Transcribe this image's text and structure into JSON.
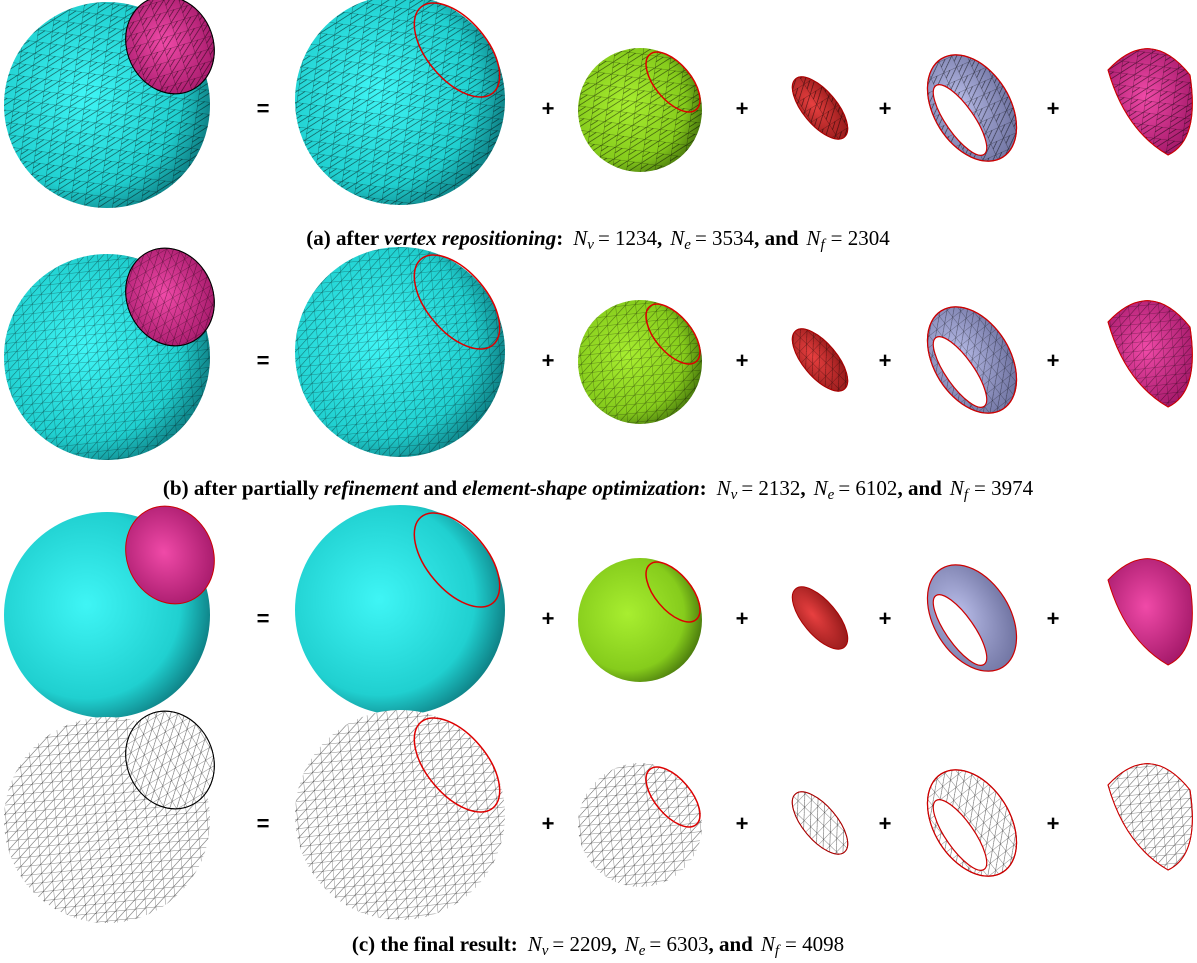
{
  "rows": [
    {
      "operators": [
        "=",
        "+",
        "+",
        "+",
        "+"
      ]
    },
    {
      "operators": [
        "=",
        "+",
        "+",
        "+",
        "+"
      ]
    },
    {
      "operators": [
        "=",
        "+",
        "+",
        "+",
        "+"
      ]
    },
    {
      "operators": [
        "=",
        "+",
        "+",
        "+",
        "+"
      ]
    }
  ],
  "captions": [
    [
      "(a) after",
      "vertex repositioning",
      ":",
      "N",
      "v",
      "= 1234",
      ",",
      "N",
      "e",
      "= 3534",
      ", and",
      "N",
      "f",
      "= 2304"
    ],
    [
      "(b) after partially",
      "refinement",
      "and",
      "element-shape optimization",
      ":",
      "N",
      "v",
      "= 2132",
      ",",
      "N",
      "e",
      "= 6102",
      ", and",
      "N",
      "f",
      "= 3974"
    ],
    [
      "(c) the final result:",
      "N",
      "v",
      "= 2209",
      ",",
      "N",
      "e",
      "= 6303",
      ", and",
      "N",
      "f",
      "= 4098"
    ]
  ]
}
